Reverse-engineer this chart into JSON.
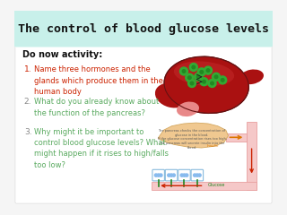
{
  "title": "The control of blood glucose levels",
  "title_bg": "#c8f0ea",
  "title_color": "#111111",
  "bg_color": "#f5f5f5",
  "header_text": "Do now activity:",
  "questions": [
    "Name three hormones and the\nglands which produce them in the\nhuman body",
    "What do you already know about\nthe function of the pancreas?",
    "Why might it be important to\ncontrol blood glucose levels? What\nmight happen if it rises to high/falls\ntoo low?"
  ],
  "q_colors": [
    "#cc2200",
    "#5aaa60",
    "#5aaa60"
  ],
  "num_colors": [
    "#cc2200",
    "#888888",
    "#888888"
  ],
  "liver_color": "#aa1111",
  "liver_dark": "#881111",
  "liver_light": "#cc3333",
  "liver_pink": "#e88888",
  "islet_color": "#33aa33",
  "islet_dark": "#228822",
  "pancreas_color": "#f0c890",
  "pancreas_edge": "#d4a860",
  "duct_color": "#f5c8c8",
  "duct_edge": "#e8a0a0",
  "cell_fill": "#ffffff",
  "cell_edge": "#88bbdd",
  "cell_dot": "#88bbee",
  "stem_color": "#228822",
  "orange_arrow": "#dd7700",
  "red_arrow": "#cc2200",
  "glucose_label_color": "#228822"
}
